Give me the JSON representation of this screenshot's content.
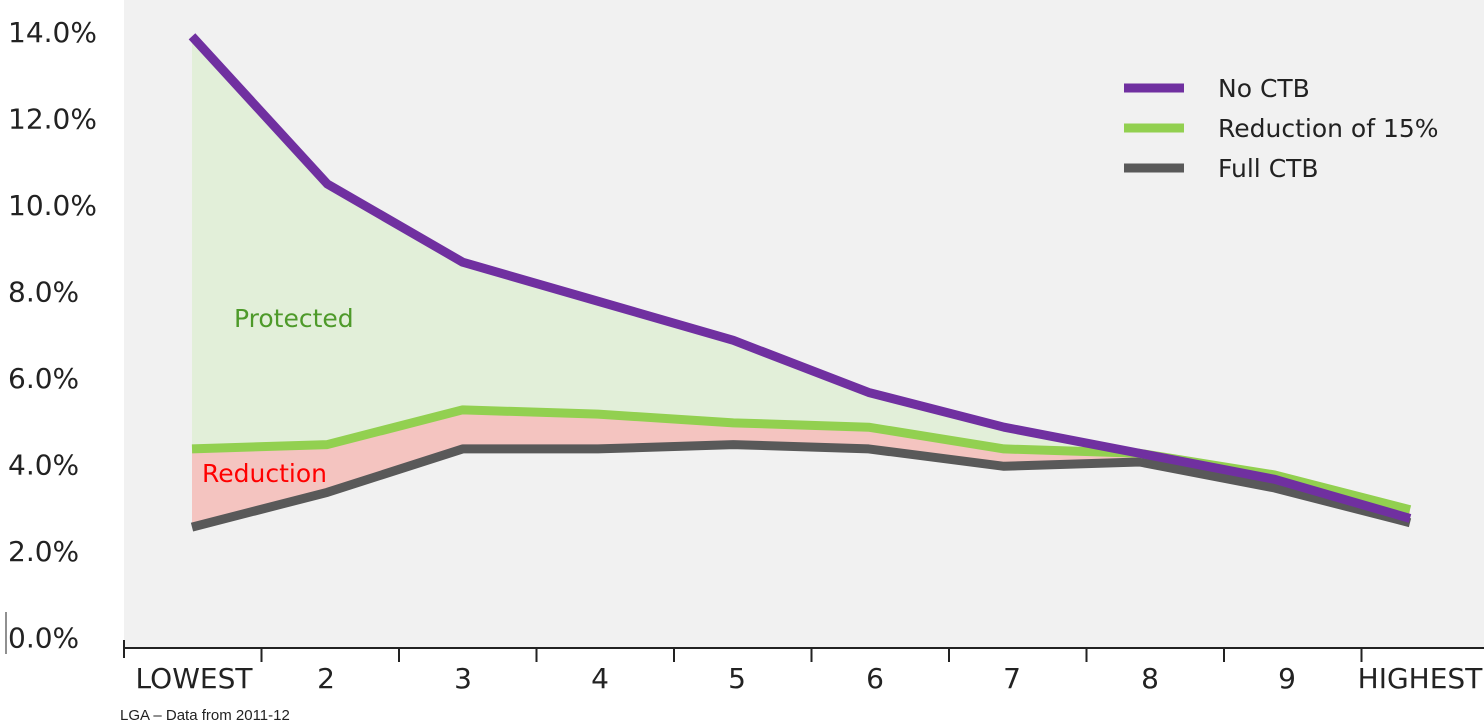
{
  "chart_data": {
    "type": "line",
    "categories": [
      "LOWEST",
      "2",
      "3",
      "4",
      "5",
      "6",
      "7",
      "8",
      "9",
      "HIGHEST"
    ],
    "series": [
      {
        "name": "No CTB",
        "color": "#7030a0",
        "values": [
          13.9,
          10.5,
          8.7,
          7.8,
          6.9,
          5.7,
          4.9,
          4.3,
          3.7,
          2.8
        ]
      },
      {
        "name": "Reduction of 15%",
        "color": "#92d050",
        "values": [
          4.4,
          4.5,
          5.3,
          5.2,
          5.0,
          4.9,
          4.4,
          4.3,
          3.8,
          3.0
        ]
      },
      {
        "name": "Full CTB",
        "color": "#595959",
        "values": [
          2.6,
          3.4,
          4.4,
          4.4,
          4.5,
          4.4,
          4.0,
          4.1,
          3.5,
          2.7
        ]
      }
    ],
    "yticks": [
      "14.0%",
      "12.0%",
      "10.0%",
      "8.0%",
      "6.0%",
      "4.0%",
      "2.0%",
      "0.0%"
    ],
    "ylim": [
      0,
      14
    ],
    "legend_position": "top-right",
    "annotations": [
      {
        "text": "Protected",
        "color": "#4e9a2a",
        "fill": "#e2efd9"
      },
      {
        "text": "Reduction",
        "color": "#ff0000",
        "fill": "#f4c4c0"
      }
    ],
    "source_note": "LGA – Data from 2011-12",
    "plot_background": "#f1f1f1"
  }
}
